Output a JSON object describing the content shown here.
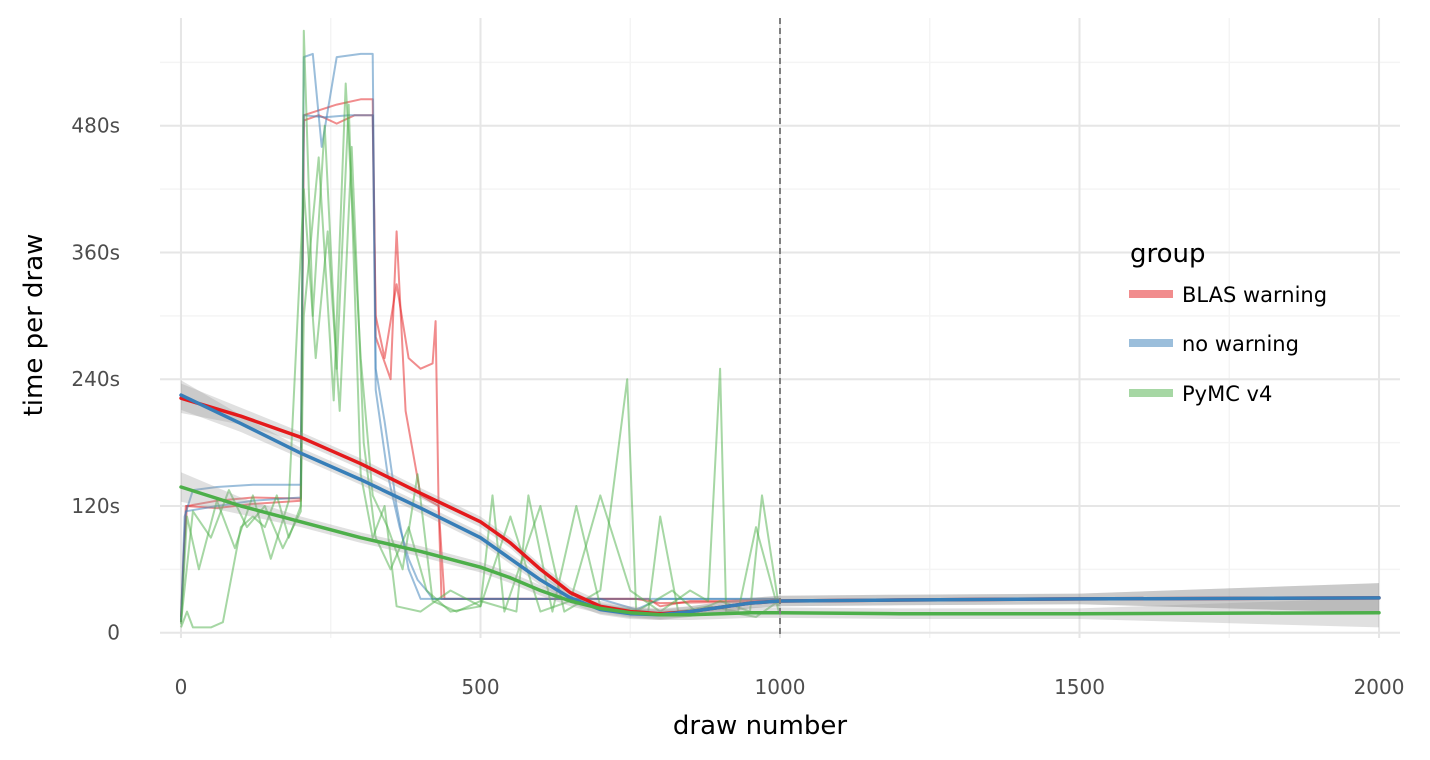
{
  "chart_data": {
    "type": "line",
    "xlabel": "draw number",
    "ylabel": "time per draw",
    "xlim": [
      -35,
      2035
    ],
    "ylim": [
      -5,
      582
    ],
    "x_ticks": [
      0,
      500,
      1000,
      1500,
      2000
    ],
    "x_tick_labels": [
      "0",
      "500",
      "1000",
      "1500",
      "2000"
    ],
    "y_ticks": [
      0,
      120,
      240,
      360,
      480
    ],
    "y_tick_labels": [
      "0",
      "120s",
      "240s",
      "360s",
      "480s"
    ],
    "grid": true,
    "vline": {
      "x": 1000,
      "style": "dashed"
    },
    "legend": {
      "title": "group",
      "position": "right",
      "entries": [
        {
          "label": "BLAS warning",
          "color": "#e41a1c"
        },
        {
          "label": "no warning",
          "color": "#377eb8"
        },
        {
          "label": "PyMC v4",
          "color": "#4daf4a"
        }
      ]
    },
    "raw_series": [
      {
        "group": "BLAS warning",
        "color": "#e41a1c",
        "points": [
          [
            0,
            15
          ],
          [
            5,
            80
          ],
          [
            10,
            120
          ],
          [
            60,
            125
          ],
          [
            120,
            128
          ],
          [
            200,
            127
          ],
          [
            205,
            490
          ],
          [
            260,
            500
          ],
          [
            300,
            505
          ],
          [
            320,
            505
          ],
          [
            325,
            280
          ],
          [
            350,
            240
          ],
          [
            360,
            380
          ],
          [
            375,
            210
          ],
          [
            400,
            130
          ],
          [
            430,
            120
          ],
          [
            435,
            32
          ],
          [
            600,
            32
          ],
          [
            780,
            32
          ],
          [
            800,
            25
          ],
          [
            850,
            30
          ],
          [
            900,
            30
          ],
          [
            998,
            32
          ]
        ]
      },
      {
        "group": "BLAS warning",
        "color": "#e41a1c",
        "points": [
          [
            0,
            10
          ],
          [
            8,
            120
          ],
          [
            60,
            118
          ],
          [
            120,
            122
          ],
          [
            200,
            125
          ],
          [
            205,
            485
          ],
          [
            230,
            490
          ],
          [
            260,
            482
          ],
          [
            290,
            490
          ],
          [
            320,
            490
          ],
          [
            325,
            300
          ],
          [
            340,
            260
          ],
          [
            360,
            330
          ],
          [
            380,
            260
          ],
          [
            400,
            250
          ],
          [
            420,
            255
          ],
          [
            425,
            295
          ],
          [
            430,
            120
          ],
          [
            440,
            32
          ],
          [
            700,
            32
          ],
          [
            760,
            32
          ],
          [
            800,
            28
          ],
          [
            998,
            30
          ]
        ]
      },
      {
        "group": "no warning",
        "color": "#377eb8",
        "points": [
          [
            0,
            12
          ],
          [
            6,
            110
          ],
          [
            20,
            135
          ],
          [
            60,
            138
          ],
          [
            120,
            140
          ],
          [
            200,
            140
          ],
          [
            205,
            545
          ],
          [
            220,
            548
          ],
          [
            235,
            460
          ],
          [
            260,
            545
          ],
          [
            300,
            548
          ],
          [
            320,
            548
          ],
          [
            325,
            250
          ],
          [
            340,
            200
          ],
          [
            360,
            120
          ],
          [
            380,
            60
          ],
          [
            400,
            32
          ],
          [
            700,
            32
          ],
          [
            760,
            22
          ],
          [
            800,
            32
          ],
          [
            998,
            32
          ]
        ]
      },
      {
        "group": "no warning",
        "color": "#377eb8",
        "points": [
          [
            0,
            10
          ],
          [
            8,
            115
          ],
          [
            60,
            120
          ],
          [
            120,
            125
          ],
          [
            200,
            128
          ],
          [
            205,
            490
          ],
          [
            240,
            488
          ],
          [
            280,
            490
          ],
          [
            320,
            490
          ],
          [
            325,
            230
          ],
          [
            345,
            150
          ],
          [
            365,
            100
          ],
          [
            380,
            70
          ],
          [
            395,
            50
          ],
          [
            410,
            40
          ],
          [
            420,
            32
          ],
          [
            700,
            32
          ],
          [
            800,
            32
          ],
          [
            998,
            32
          ]
        ]
      },
      {
        "group": "PyMC v4",
        "color": "#4daf4a",
        "points": [
          [
            0,
            5
          ],
          [
            10,
            20
          ],
          [
            20,
            5
          ],
          [
            50,
            5
          ],
          [
            70,
            10
          ],
          [
            80,
            40
          ],
          [
            100,
            100
          ],
          [
            120,
            110
          ],
          [
            140,
            100
          ],
          [
            160,
            130
          ],
          [
            180,
            90
          ],
          [
            200,
            120
          ],
          [
            205,
            570
          ],
          [
            220,
            300
          ],
          [
            240,
            480
          ],
          [
            260,
            250
          ],
          [
            280,
            500
          ],
          [
            300,
            150
          ],
          [
            320,
            90
          ],
          [
            340,
            120
          ],
          [
            360,
            25
          ],
          [
            400,
            20
          ],
          [
            450,
            40
          ],
          [
            500,
            25
          ],
          [
            550,
            110
          ],
          [
            600,
            20
          ],
          [
            650,
            30
          ],
          [
            700,
            130
          ],
          [
            750,
            40
          ],
          [
            800,
            20
          ],
          [
            850,
            40
          ],
          [
            880,
            30
          ],
          [
            900,
            250
          ],
          [
            910,
            20
          ],
          [
            960,
            15
          ],
          [
            998,
            30
          ]
        ]
      },
      {
        "group": "PyMC v4",
        "color": "#4daf4a",
        "points": [
          [
            0,
            8
          ],
          [
            10,
            110
          ],
          [
            30,
            60
          ],
          [
            60,
            125
          ],
          [
            90,
            80
          ],
          [
            120,
            130
          ],
          [
            150,
            70
          ],
          [
            180,
            125
          ],
          [
            205,
            420
          ],
          [
            225,
            260
          ],
          [
            245,
            380
          ],
          [
            265,
            210
          ],
          [
            285,
            460
          ],
          [
            305,
            180
          ],
          [
            325,
            90
          ],
          [
            350,
            60
          ],
          [
            380,
            100
          ],
          [
            410,
            40
          ],
          [
            450,
            20
          ],
          [
            500,
            25
          ],
          [
            520,
            130
          ],
          [
            540,
            20
          ],
          [
            600,
            120
          ],
          [
            640,
            20
          ],
          [
            700,
            40
          ],
          [
            745,
            240
          ],
          [
            760,
            20
          ],
          [
            820,
            40
          ],
          [
            860,
            20
          ],
          [
            900,
            30
          ],
          [
            950,
            20
          ],
          [
            970,
            130
          ],
          [
            998,
            25
          ]
        ]
      },
      {
        "group": "PyMC v4",
        "color": "#4daf4a",
        "points": [
          [
            0,
            10
          ],
          [
            20,
            115
          ],
          [
            50,
            90
          ],
          [
            80,
            135
          ],
          [
            110,
            100
          ],
          [
            140,
            120
          ],
          [
            170,
            80
          ],
          [
            200,
            115
          ],
          [
            205,
            300
          ],
          [
            230,
            450
          ],
          [
            255,
            220
          ],
          [
            275,
            520
          ],
          [
            300,
            260
          ],
          [
            320,
            130
          ],
          [
            345,
            100
          ],
          [
            370,
            60
          ],
          [
            395,
            150
          ],
          [
            420,
            30
          ],
          [
            460,
            20
          ],
          [
            500,
            30
          ],
          [
            560,
            20
          ],
          [
            580,
            130
          ],
          [
            620,
            20
          ],
          [
            660,
            120
          ],
          [
            700,
            25
          ],
          [
            780,
            20
          ],
          [
            800,
            110
          ],
          [
            830,
            20
          ],
          [
            880,
            25
          ],
          [
            930,
            20
          ],
          [
            960,
            100
          ],
          [
            998,
            20
          ]
        ]
      }
    ],
    "smooth_series": [
      {
        "name": "BLAS warning",
        "color": "#e41a1c",
        "x": [
          0,
          100,
          200,
          300,
          400,
          500,
          550,
          600,
          650,
          700,
          750,
          800,
          850,
          900,
          950,
          1000,
          1200,
          1500,
          2000
        ],
        "y": [
          222,
          205,
          185,
          160,
          132,
          105,
          85,
          60,
          38,
          25,
          20,
          18,
          20,
          24,
          28,
          30,
          31,
          32,
          33
        ]
      },
      {
        "name": "no warning",
        "color": "#377eb8",
        "x": [
          0,
          100,
          200,
          300,
          400,
          500,
          550,
          600,
          650,
          700,
          750,
          800,
          850,
          900,
          950,
          1000,
          1200,
          1500,
          2000
        ],
        "y": [
          225,
          198,
          170,
          145,
          118,
          90,
          70,
          50,
          33,
          22,
          18,
          17,
          20,
          24,
          28,
          30,
          31,
          32,
          33
        ]
      },
      {
        "name": "PyMC v4",
        "color": "#4daf4a",
        "x": [
          0,
          100,
          200,
          300,
          400,
          500,
          550,
          600,
          650,
          700,
          750,
          800,
          850,
          900,
          950,
          1000,
          1200,
          1500,
          2000
        ],
        "y": [
          138,
          120,
          105,
          90,
          77,
          62,
          52,
          40,
          30,
          23,
          19,
          17,
          17,
          18,
          19,
          19,
          18,
          18,
          19
        ]
      }
    ]
  }
}
